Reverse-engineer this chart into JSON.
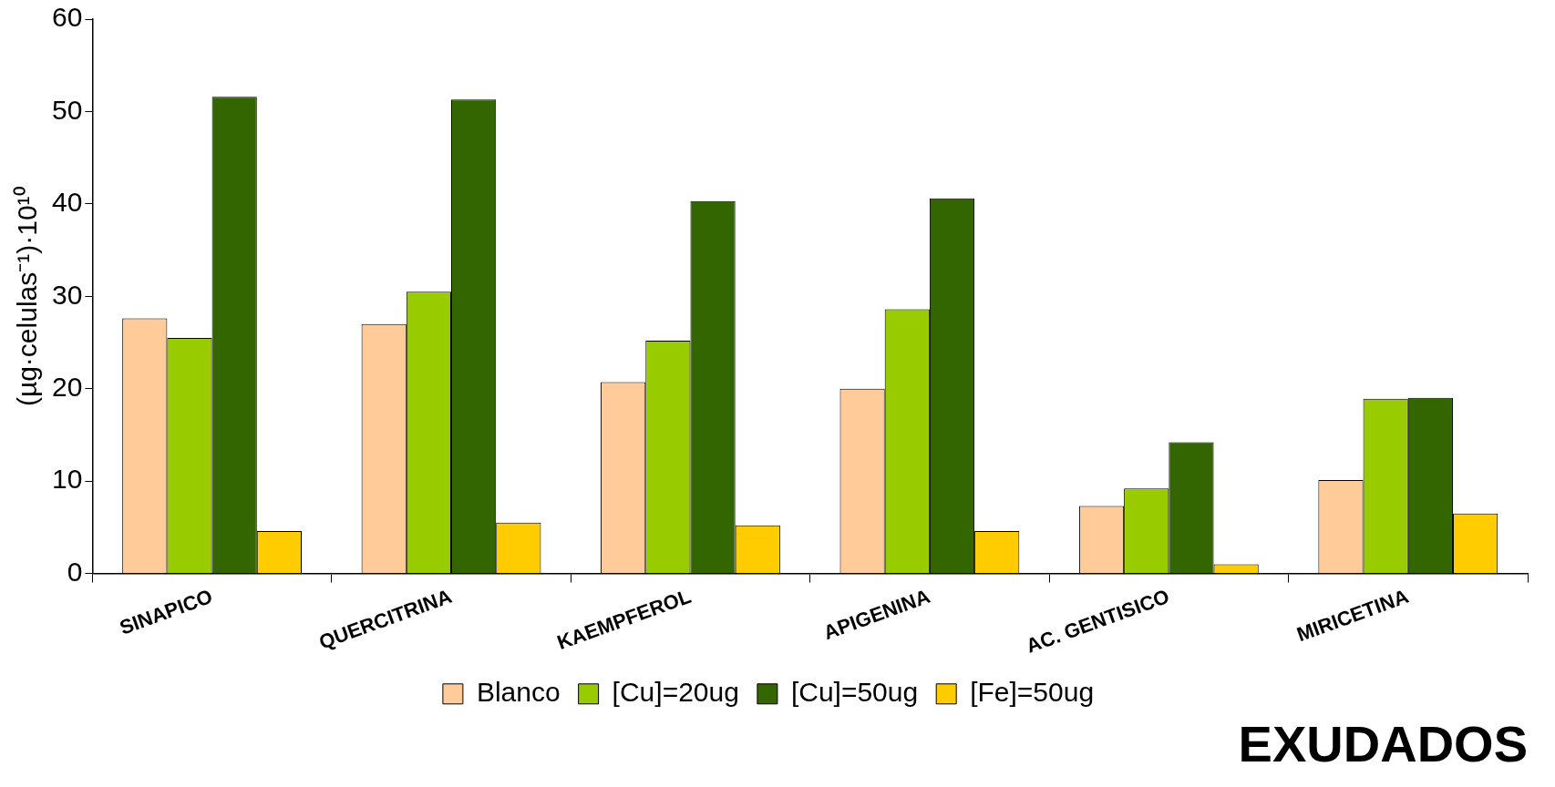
{
  "chart_data": {
    "type": "bar",
    "title": "EXUDADOS",
    "ylabel": "(µg·celulas⁻¹)·10¹⁰",
    "categories": [
      "SINAPICO",
      "QUERCITRINA",
      "KAEMPFEROL",
      "APIGENINA",
      "AC. GENTISICO",
      "MIRICETINA"
    ],
    "series": [
      {
        "name": "Blanco",
        "color": "#ffcc99",
        "values": [
          27.6,
          27.0,
          20.7,
          20.0,
          7.3,
          10.1
        ]
      },
      {
        "name": "[Cu]=20ug",
        "color": "#99cc00",
        "values": [
          25.5,
          30.5,
          25.2,
          28.6,
          9.2,
          18.9
        ]
      },
      {
        "name": "[Cu]=50ug",
        "color": "#336600",
        "values": [
          51.6,
          51.3,
          40.3,
          40.6,
          14.2,
          19.0
        ]
      },
      {
        "name": "[Fe]=50ug",
        "color": "#ffcc00",
        "values": [
          4.6,
          5.5,
          5.2,
          4.6,
          1.0,
          6.5
        ]
      }
    ],
    "ylim": [
      0,
      60
    ],
    "yticks": [
      0,
      10,
      20,
      30,
      40,
      50,
      60
    ],
    "grid": false,
    "legend": "bottom"
  }
}
